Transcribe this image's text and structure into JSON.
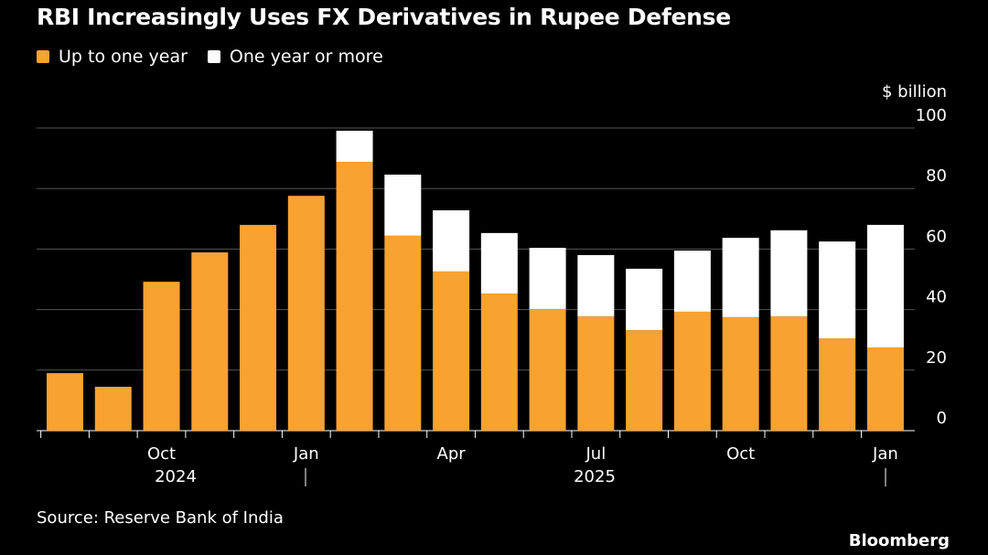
{
  "colors": {
    "short": "#f8a231",
    "long": "#ffffff",
    "grid": "#555555"
  },
  "chart_data": {
    "type": "bar",
    "stacked": true,
    "title": "RBI Increasingly Uses FX Derivatives in Rupee Defense",
    "unit_label": "$ billion",
    "ylim": [
      0,
      100
    ],
    "yticks": [
      0,
      20,
      40,
      60,
      80,
      100
    ],
    "categories": [
      "Aug 2024",
      "Sep 2024",
      "Oct 2024",
      "Nov 2024",
      "Dec 2024",
      "Jan 2025",
      "Feb 2025",
      "Mar 2025",
      "Apr 2025",
      "May 2025",
      "Jun 2025",
      "Jul 2025",
      "Aug 2025",
      "Sep 2025",
      "Oct 2025",
      "Nov 2025",
      "Dec 2025",
      "Jan 2026"
    ],
    "series": [
      {
        "name": "Up to one year",
        "values": [
          19.0,
          14.5,
          49.2,
          58.9,
          68.0,
          77.6,
          88.8,
          64.4,
          52.6,
          45.3,
          40.2,
          37.8,
          33.2,
          39.3,
          37.5,
          37.8,
          30.5,
          27.5
        ]
      },
      {
        "name": "One year or more",
        "values": [
          0,
          0,
          0,
          0,
          0,
          0,
          10.3,
          20.2,
          20.2,
          20.0,
          20.2,
          20.2,
          20.3,
          20.2,
          26.2,
          28.4,
          32.0,
          40.5
        ]
      }
    ],
    "xtick_labels": [
      {
        "index": 2,
        "label": "Oct"
      },
      {
        "index": 5,
        "label": "Jan"
      },
      {
        "index": 8,
        "label": "Apr"
      },
      {
        "index": 11,
        "label": "Jul"
      },
      {
        "index": 14,
        "label": "Oct"
      },
      {
        "index": 17,
        "label": "Jan"
      }
    ],
    "year_labels": [
      {
        "label": "2024"
      },
      {
        "label": "2025"
      }
    ],
    "legend": "top-left",
    "grid": true
  },
  "source": "Source: Reserve Bank of India",
  "brand": "Bloomberg"
}
